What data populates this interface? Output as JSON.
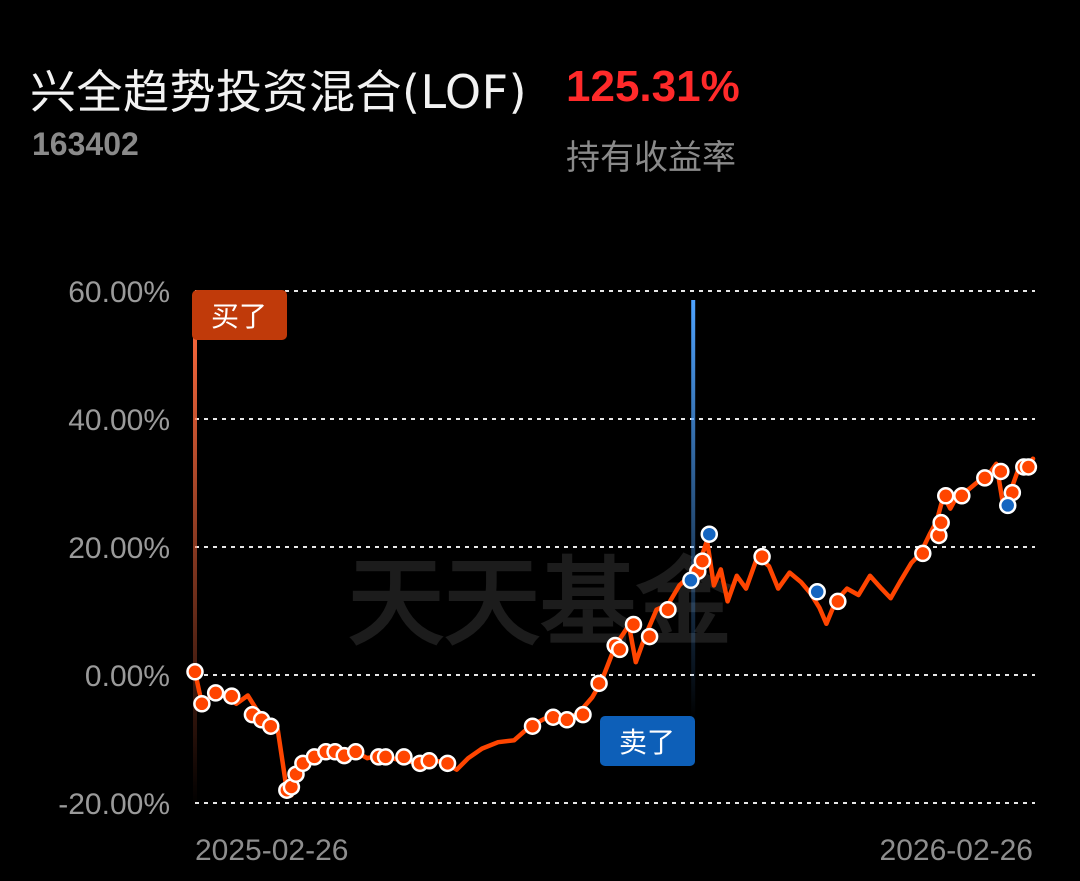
{
  "header": {
    "fund_name": "兴全趋势投资混合(LOF)",
    "fund_code": "163402",
    "return_value": "125.31%",
    "return_label": "持有收益率"
  },
  "watermark": "天天基金",
  "buy_tag": "买了",
  "sell_tag": "卖了",
  "colors": {
    "line": "#ff4500",
    "buy": "#ff4500",
    "sell": "#1565c0",
    "grid": "#ffffff",
    "return": "#ff2a2a"
  },
  "chart_data": {
    "type": "line",
    "x_labels": [
      "2025-02-26",
      "2026-02-26"
    ],
    "x_range": [
      "2025-02-26",
      "2026-02-26"
    ],
    "y_ticks": [
      "60.00%",
      "40.00%",
      "20.00%",
      "0.00%",
      "-20.00%"
    ],
    "ylim": [
      -20,
      60
    ],
    "grid": "horizontal dotted",
    "series": [
      {
        "values": [
          [
            "2025-02-26",
            0.5
          ],
          [
            "2025-03-01",
            -4.5
          ],
          [
            "2025-03-07",
            -2.8
          ],
          [
            "2025-03-12",
            -3.5
          ],
          [
            "2025-03-16",
            -4.5
          ],
          [
            "2025-03-21",
            -3.2
          ],
          [
            "2025-03-25",
            -5.5
          ],
          [
            "2025-03-31",
            -7.5
          ],
          [
            "2025-04-03",
            -8.5
          ],
          [
            "2025-04-07",
            -18.0
          ],
          [
            "2025-04-09",
            -18.8
          ],
          [
            "2025-04-12",
            -15.5
          ],
          [
            "2025-04-15",
            -13.5
          ],
          [
            "2025-04-20",
            -12.2
          ],
          [
            "2025-04-25",
            -11.8
          ],
          [
            "2025-05-01",
            -12.5
          ],
          [
            "2025-05-06",
            -11.8
          ],
          [
            "2025-05-12",
            -13.0
          ],
          [
            "2025-05-18",
            -12.5
          ],
          [
            "2025-05-25",
            -13.2
          ],
          [
            "2025-06-01",
            -13.6
          ],
          [
            "2025-06-07",
            -13.2
          ],
          [
            "2025-06-14",
            -13.6
          ],
          [
            "2025-06-20",
            -14.8
          ],
          [
            "2025-06-25",
            -13.0
          ],
          [
            "2025-07-01",
            -11.5
          ],
          [
            "2025-07-08",
            -10.5
          ],
          [
            "2025-07-15",
            -10.2
          ],
          [
            "2025-07-22",
            -8.0
          ],
          [
            "2025-07-30",
            -6.5
          ],
          [
            "2025-08-06",
            -7.0
          ],
          [
            "2025-08-12",
            -6.0
          ],
          [
            "2025-08-18",
            -3.5
          ],
          [
            "2025-08-22",
            -1.0
          ],
          [
            "2025-08-28",
            4.5
          ],
          [
            "2025-09-03",
            7.8
          ],
          [
            "2025-09-06",
            2.0
          ],
          [
            "2025-09-10",
            6.0
          ],
          [
            "2025-09-15",
            10.2
          ],
          [
            "2025-09-20",
            11.0
          ],
          [
            "2025-09-25",
            14.0
          ],
          [
            "2025-10-01",
            16.0
          ],
          [
            "2025-10-04",
            17.8
          ],
          [
            "2025-10-07",
            21.0
          ],
          [
            "2025-10-10",
            14.0
          ],
          [
            "2025-10-13",
            16.5
          ],
          [
            "2025-10-16",
            11.5
          ],
          [
            "2025-10-20",
            15.5
          ],
          [
            "2025-10-24",
            13.5
          ],
          [
            "2025-10-29",
            18.5
          ],
          [
            "2025-11-03",
            17.0
          ],
          [
            "2025-11-07",
            13.5
          ],
          [
            "2025-11-12",
            16.0
          ],
          [
            "2025-11-17",
            14.5
          ],
          [
            "2025-11-21",
            12.8
          ],
          [
            "2025-11-25",
            10.5
          ],
          [
            "2025-11-28",
            8.0
          ],
          [
            "2025-12-02",
            11.5
          ],
          [
            "2025-12-07",
            13.5
          ],
          [
            "2025-12-12",
            12.5
          ],
          [
            "2025-12-17",
            15.5
          ],
          [
            "2025-12-22",
            13.5
          ],
          [
            "2025-12-26",
            12.0
          ],
          [
            "2025-12-30",
            14.5
          ],
          [
            "2026-01-04",
            17.5
          ],
          [
            "2026-01-08",
            19.0
          ],
          [
            "2026-01-12",
            22.0
          ],
          [
            "2026-01-15",
            24.0
          ],
          [
            "2026-01-18",
            28.0
          ],
          [
            "2026-01-21",
            26.0
          ],
          [
            "2026-01-24",
            28.0
          ],
          [
            "2026-01-29",
            29.0
          ],
          [
            "2026-02-03",
            30.5
          ],
          [
            "2026-02-07",
            31.5
          ],
          [
            "2026-02-10",
            33.0
          ],
          [
            "2026-02-13",
            26.5
          ],
          [
            "2026-02-16",
            28.5
          ],
          [
            "2026-02-20",
            32.5
          ],
          [
            "2026-02-23",
            32.0
          ],
          [
            "2026-02-26",
            33.8
          ]
        ]
      }
    ],
    "buy_points": [
      [
        "2025-02-26",
        0.5
      ],
      [
        "2025-03-01",
        -4.5
      ],
      [
        "2025-03-07",
        -2.8
      ],
      [
        "2025-03-14",
        -3.3
      ],
      [
        "2025-03-23",
        -6.2
      ],
      [
        "2025-03-27",
        -7.0
      ],
      [
        "2025-03-31",
        -8.0
      ],
      [
        "2025-04-07",
        -18.0
      ],
      [
        "2025-04-09",
        -17.5
      ],
      [
        "2025-04-11",
        -15.5
      ],
      [
        "2025-04-14",
        -13.8
      ],
      [
        "2025-04-19",
        -12.8
      ],
      [
        "2025-04-24",
        -12.0
      ],
      [
        "2025-04-28",
        -12.0
      ],
      [
        "2025-05-02",
        -12.6
      ],
      [
        "2025-05-07",
        -12.0
      ],
      [
        "2025-05-17",
        -12.8
      ],
      [
        "2025-05-20",
        -12.8
      ],
      [
        "2025-05-28",
        -12.8
      ],
      [
        "2025-06-04",
        -13.8
      ],
      [
        "2025-06-08",
        -13.4
      ],
      [
        "2025-06-16",
        -13.8
      ],
      [
        "2025-07-23",
        -8.0
      ],
      [
        "2025-08-01",
        -6.6
      ],
      [
        "2025-08-07",
        -7.0
      ],
      [
        "2025-08-14",
        -6.2
      ],
      [
        "2025-08-21",
        -1.3
      ],
      [
        "2025-08-28",
        4.6
      ],
      [
        "2025-08-30",
        4.0
      ],
      [
        "2025-09-05",
        7.9
      ],
      [
        "2025-09-12",
        6.0
      ],
      [
        "2025-09-20",
        10.2
      ],
      [
        "2025-10-03",
        16.2
      ],
      [
        "2025-10-05",
        17.8
      ],
      [
        "2025-10-31",
        18.5
      ],
      [
        "2025-12-03",
        11.5
      ],
      [
        "2026-01-09",
        19.0
      ],
      [
        "2026-01-16",
        21.8
      ],
      [
        "2026-01-17",
        23.8
      ],
      [
        "2026-01-19",
        28.0
      ],
      [
        "2026-01-26",
        28.0
      ],
      [
        "2026-02-05",
        30.8
      ],
      [
        "2026-02-12",
        31.8
      ],
      [
        "2026-02-17",
        28.5
      ],
      [
        "2026-02-22",
        32.5
      ],
      [
        "2026-02-24",
        32.5
      ]
    ],
    "sell_points": [
      [
        "2025-09-30",
        14.8
      ],
      [
        "2025-10-08",
        22.0
      ],
      [
        "2025-11-24",
        13.0
      ],
      [
        "2026-02-15",
        26.5
      ]
    ],
    "buy_marker_date": "2025-02-26",
    "sell_marker_date": "2025-10-01"
  }
}
